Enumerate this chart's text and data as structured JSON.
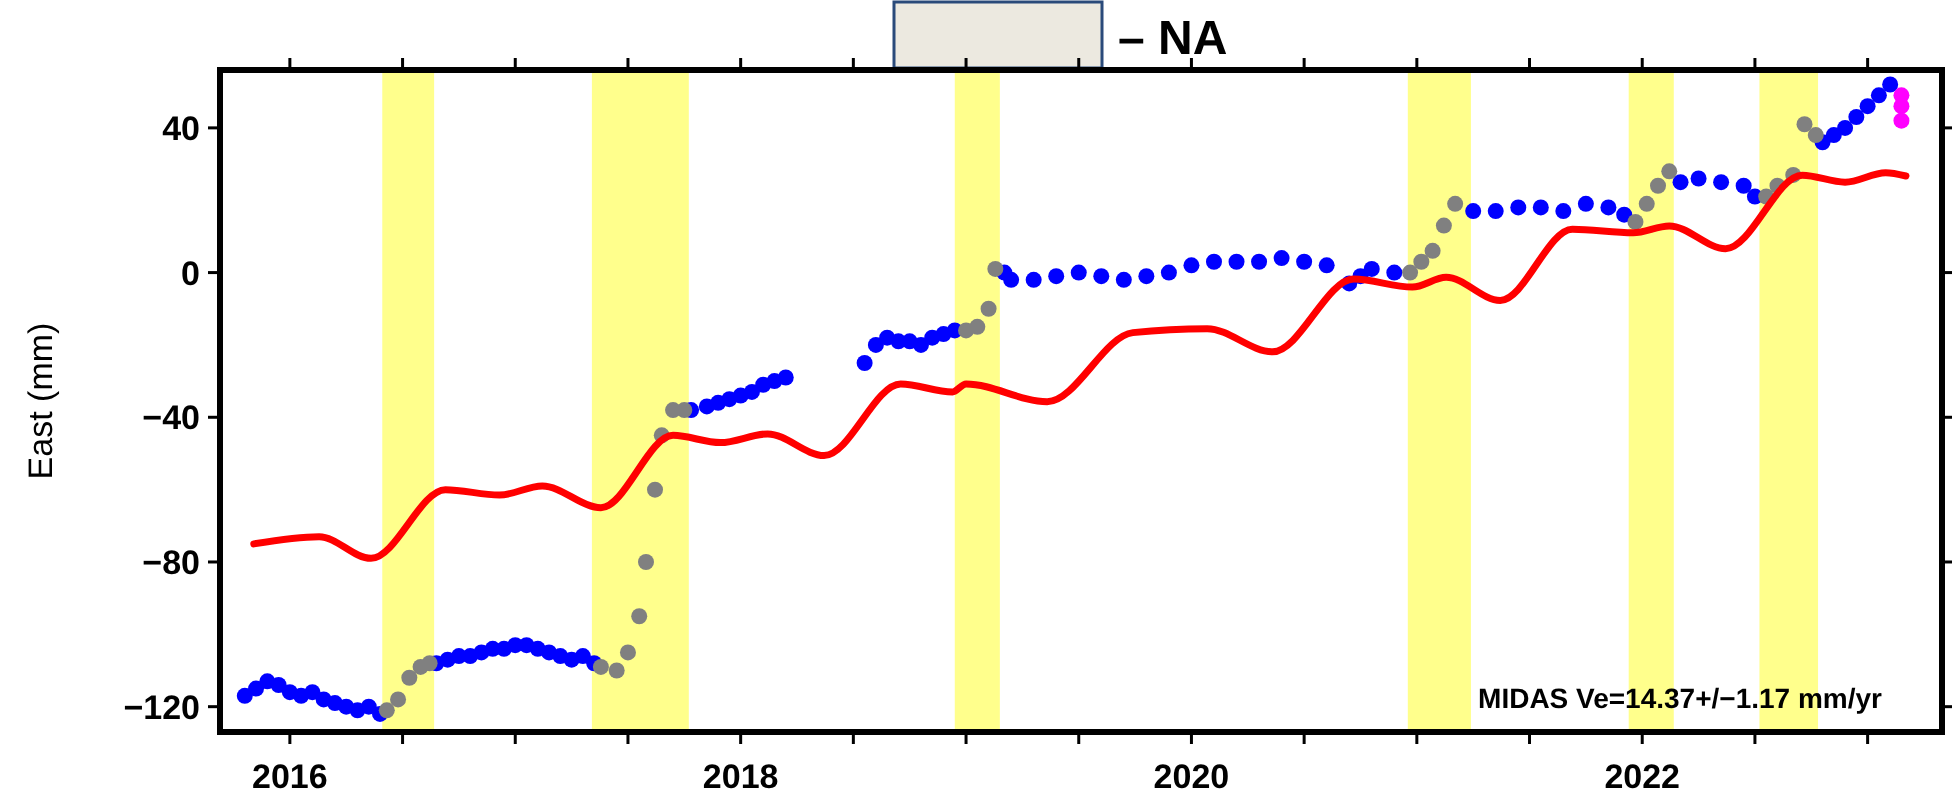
{
  "chart_data": {
    "type": "scatter",
    "title": "– NA",
    "ylabel": "East (mm)",
    "annotations": [
      "MIDAS Ve=14.37+/−1.17 mm/yr"
    ],
    "xlim": [
      2015.69,
      2023.33
    ],
    "ylim": [
      -127,
      56
    ],
    "xticks": [
      2016,
      {
        "value": 2016.5,
        "label": null
      },
      {
        "value": 2017,
        "label": null
      },
      {
        "value": 2017.5,
        "label": null
      },
      2018,
      {
        "value": 2018.5,
        "label": null
      },
      {
        "value": 2019,
        "label": null
      },
      {
        "value": 2019.5,
        "label": null
      },
      2020,
      {
        "value": 2020.5,
        "label": null
      },
      {
        "value": 2021,
        "label": null
      },
      {
        "value": 2021.5,
        "label": null
      },
      2022,
      {
        "value": 2022.5,
        "label": null
      },
      {
        "value": 2023,
        "label": null
      }
    ],
    "yticks": [
      -120,
      -80,
      -40,
      0,
      40
    ],
    "grid": false,
    "marker": "circle",
    "bands": [
      {
        "axis": "x",
        "from": 2016.41,
        "to": 2016.64,
        "color": "#ffff66"
      },
      {
        "axis": "x",
        "from": 2017.34,
        "to": 2017.77,
        "color": "#ffff66"
      },
      {
        "axis": "x",
        "from": 2018.95,
        "to": 2019.15,
        "color": "#ffff66"
      },
      {
        "axis": "x",
        "from": 2020.96,
        "to": 2021.24,
        "color": "#ffff66"
      },
      {
        "axis": "x",
        "from": 2021.94,
        "to": 2022.14,
        "color": "#ffff66"
      },
      {
        "axis": "x",
        "from": 2022.52,
        "to": 2022.78,
        "color": "#ffff66"
      }
    ],
    "series": [
      {
        "type": "line",
        "color": "#ff0000",
        "marker": "none",
        "line_style": "solid",
        "x": [
          2015.84,
          2016.13,
          2016.36,
          2016.69,
          2016.93,
          2017.12,
          2017.38,
          2017.7,
          2017.91,
          2018.12,
          2018.37,
          2018.71,
          2018.94,
          2019.0,
          2019.36,
          2019.74,
          2020.07,
          2020.36,
          2020.72,
          2020.98,
          2021.13,
          2021.37,
          2021.69,
          2021.96,
          2022.12,
          2022.37,
          2022.71,
          2022.9,
          2023.08,
          2023.17
        ],
        "values": [
          -75,
          -73,
          -79,
          -60,
          -61.5,
          -59,
          -65,
          -45,
          -47,
          -44.6,
          -50.6,
          -30.8,
          -33,
          -30.8,
          -35.7,
          -16.6,
          -15.5,
          -21.9,
          -1.8,
          -4,
          -1.3,
          -7.7,
          12,
          11,
          12.9,
          6.6,
          26.9,
          25,
          27.6,
          26.7
        ]
      },
      {
        "color": "#0000ff",
        "x": [
          2015.8,
          2015.85,
          2015.9,
          2015.95,
          2016.0,
          2016.05,
          2016.1,
          2016.15,
          2016.2,
          2016.25,
          2016.3,
          2016.35,
          2016.4,
          2016.65,
          2016.7,
          2016.75,
          2016.8,
          2016.85,
          2016.9,
          2016.95,
          2017.0,
          2017.05,
          2017.1,
          2017.15,
          2017.2,
          2017.25,
          2017.3,
          2017.35,
          2017.78,
          2017.85,
          2017.9,
          2017.95,
          2018.0,
          2018.05,
          2018.1,
          2018.15,
          2018.2,
          2018.55,
          2018.6,
          2018.65,
          2018.7,
          2018.75,
          2018.8,
          2018.85,
          2018.9,
          2018.95,
          2019.17,
          2019.2,
          2019.3,
          2019.4,
          2019.5,
          2019.6,
          2019.7,
          2019.8,
          2019.9,
          2020.0,
          2020.1,
          2020.2,
          2020.3,
          2020.4,
          2020.5,
          2020.6,
          2020.7,
          2020.75,
          2020.8,
          2020.9,
          2021.25,
          2021.35,
          2021.45,
          2021.55,
          2021.65,
          2021.75,
          2021.85,
          2021.92,
          2022.17,
          2022.25,
          2022.35,
          2022.45,
          2022.5,
          2022.8,
          2022.85,
          2022.9,
          2022.95,
          2023.0,
          2023.05,
          2023.1
        ],
        "values": [
          -117,
          -115,
          -113,
          -114,
          -116,
          -117,
          -116,
          -118,
          -119,
          -120,
          -121,
          -120,
          -122,
          -108,
          -107,
          -106,
          -106,
          -105,
          -104,
          -104,
          -103,
          -103,
          -104,
          -105,
          -106,
          -107,
          -106,
          -108,
          -38,
          -37,
          -36,
          -35,
          -34,
          -33,
          -31,
          -30,
          -29,
          -25,
          -20,
          -18,
          -19,
          -19,
          -20,
          -18,
          -17,
          -16,
          0,
          -2,
          -2,
          -1,
          0,
          -1,
          -2,
          -1,
          0,
          2,
          3,
          3,
          3,
          4,
          3,
          2,
          -3,
          -1,
          1,
          0,
          17,
          17,
          18,
          18,
          17,
          19,
          18,
          16,
          25,
          26,
          25,
          24,
          21,
          36,
          38,
          40,
          43,
          46,
          49,
          52
        ]
      },
      {
        "color": "#808080",
        "x": [
          2016.43,
          2016.48,
          2016.53,
          2016.58,
          2016.62,
          2017.38,
          2017.45,
          2017.5,
          2017.55,
          2017.58,
          2017.62,
          2017.65,
          2017.7,
          2017.75,
          2019.0,
          2019.05,
          2019.1,
          2019.13,
          2020.97,
          2021.02,
          2021.07,
          2021.12,
          2021.17,
          2021.97,
          2022.02,
          2022.07,
          2022.12,
          2022.55,
          2022.6,
          2022.67,
          2022.72,
          2022.77
        ],
        "values": [
          -121,
          -118,
          -112,
          -109,
          -108,
          -109,
          -110,
          -105,
          -95,
          -80,
          -60,
          -45,
          -38,
          -38,
          -16,
          -15,
          -10,
          1,
          0,
          3,
          6,
          13,
          19,
          14,
          19,
          24,
          28,
          21,
          24,
          27,
          41,
          38
        ]
      },
      {
        "color": "#ff00ff",
        "x": [
          2023.15,
          2023.15,
          2023.15
        ],
        "values": [
          49,
          46,
          42
        ]
      }
    ]
  }
}
